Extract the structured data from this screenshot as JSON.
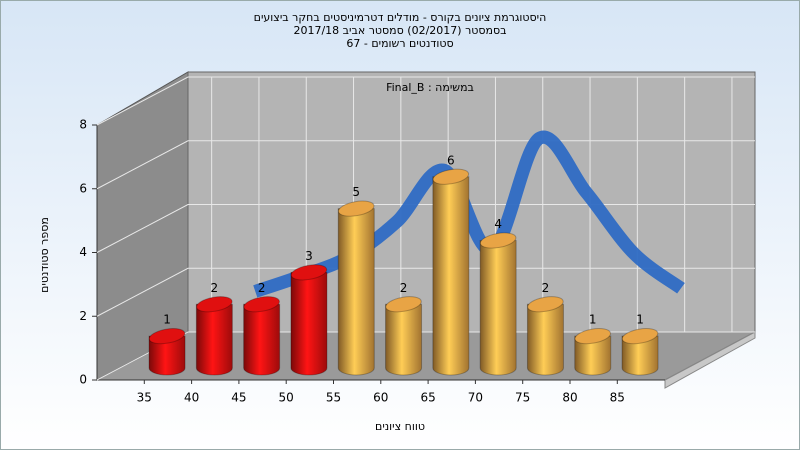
{
  "chart_data": {
    "type": "bar",
    "title": [
      "היסטוגרמת ציונים בקורס - מודלים דטרמיניסטים בחקר ביצועים",
      "בסמסטר  (02/2017)  סמסטר אביב 2017/18",
      "סטודנטים רשומים - 67"
    ],
    "annotation": "במשימה : Final_B",
    "x_label": "טווח ציונים",
    "y_label": "מספר סטודנטים",
    "categories": [
      "35",
      "40",
      "45",
      "50",
      "55",
      "60",
      "65",
      "70",
      "75",
      "80",
      "85"
    ],
    "values": [
      1,
      2,
      2,
      3,
      5,
      2,
      6,
      4,
      2,
      1,
      1
    ],
    "colors": [
      "#e01010",
      "#e01010",
      "#e01010",
      "#e01010",
      "#e8a445",
      "#e8a445",
      "#e8a445",
      "#e8a445",
      "#e8a445",
      "#e8a445",
      "#e8a445"
    ],
    "curve": {
      "color": "#2f6cc4",
      "values": [
        null,
        2.1,
        2.6,
        3.2,
        4.3,
        5.9,
        3.4,
        6.9,
        5.2,
        3.3,
        2.2
      ]
    },
    "ylim": [
      0,
      8
    ],
    "yticks": [
      0,
      2,
      4,
      6,
      8
    ],
    "grid": true
  }
}
